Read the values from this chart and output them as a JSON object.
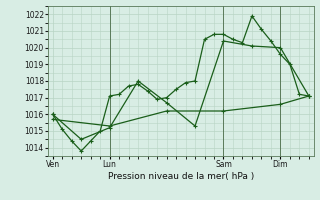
{
  "bg_color": "#d8ede4",
  "plot_bg_color": "#d8ede4",
  "grid_color": "#b8d4c4",
  "line_color": "#1a5e1a",
  "title": "Pression niveau de la mer( hPa )",
  "ylim": [
    1013.5,
    1022.5
  ],
  "yticks": [
    1014,
    1015,
    1016,
    1017,
    1018,
    1019,
    1020,
    1021,
    1022
  ],
  "xtick_labels": [
    "Ven",
    "Lun",
    "Sam",
    "Dim"
  ],
  "xtick_positions": [
    0,
    6,
    18,
    24
  ],
  "vlines_x": [
    6,
    18,
    24
  ],
  "xlim": [
    -0.5,
    27.5
  ],
  "series1": [
    [
      0,
      1016.0
    ],
    [
      1,
      1015.1
    ],
    [
      2,
      1014.4
    ],
    [
      3,
      1013.8
    ],
    [
      4,
      1014.4
    ],
    [
      5,
      1015.0
    ],
    [
      6,
      1017.1
    ],
    [
      7,
      1017.2
    ],
    [
      8,
      1017.7
    ],
    [
      9,
      1017.8
    ],
    [
      10,
      1017.4
    ],
    [
      11,
      1016.9
    ],
    [
      12,
      1017.0
    ],
    [
      13,
      1017.5
    ],
    [
      14,
      1017.9
    ],
    [
      15,
      1018.0
    ],
    [
      16,
      1020.5
    ],
    [
      17,
      1020.8
    ],
    [
      18,
      1020.8
    ],
    [
      19,
      1020.5
    ],
    [
      20,
      1020.3
    ],
    [
      21,
      1021.9
    ],
    [
      22,
      1021.1
    ],
    [
      23,
      1020.4
    ],
    [
      24,
      1019.6
    ],
    [
      25,
      1019.0
    ],
    [
      26,
      1017.2
    ],
    [
      27,
      1017.1
    ]
  ],
  "series2": [
    [
      0,
      1016.0
    ],
    [
      3,
      1014.5
    ],
    [
      6,
      1015.2
    ],
    [
      9,
      1018.0
    ],
    [
      12,
      1016.7
    ],
    [
      15,
      1015.3
    ],
    [
      18,
      1020.4
    ],
    [
      21,
      1020.1
    ],
    [
      24,
      1020.0
    ],
    [
      27,
      1017.1
    ]
  ],
  "series3": [
    [
      0,
      1015.7
    ],
    [
      6,
      1015.3
    ],
    [
      12,
      1016.2
    ],
    [
      18,
      1016.2
    ],
    [
      24,
      1016.6
    ],
    [
      27,
      1017.1
    ]
  ]
}
